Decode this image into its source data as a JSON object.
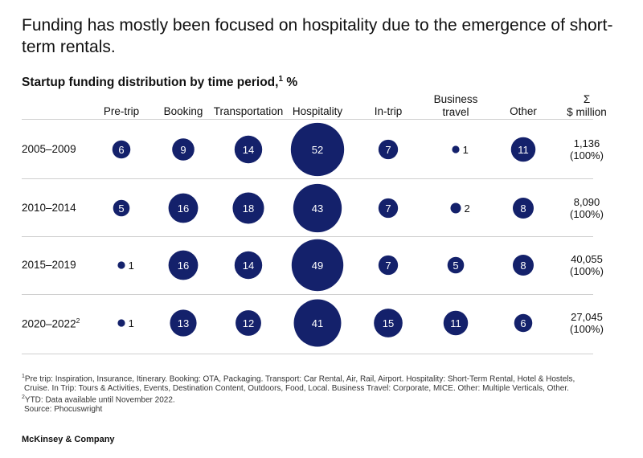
{
  "headline": "Funding has mostly been focused on hospitality due to the emergence of short-term rentals.",
  "chart_data": {
    "type": "bubble-table",
    "title": "Startup funding distribution by time period,",
    "title_footnote": "1",
    "unit": "%",
    "color": "#14216b",
    "columns": [
      {
        "label": "Pre-trip",
        "sub": ""
      },
      {
        "label": "Booking",
        "sub": ""
      },
      {
        "label": "Transportation",
        "sub": ""
      },
      {
        "label": "Hospitality",
        "sub": ""
      },
      {
        "label": "In-trip",
        "sub": ""
      },
      {
        "label": "Business",
        "sub": "travel"
      },
      {
        "label": "Other",
        "sub": ""
      }
    ],
    "total_header": {
      "symbol": "Σ",
      "label": "$ million"
    },
    "rows": [
      {
        "label": "2005–2009",
        "footnote": "",
        "values": [
          6,
          9,
          14,
          52,
          7,
          1,
          11
        ],
        "total": "1,136",
        "total_pct": "(100%)"
      },
      {
        "label": "2010–2014",
        "footnote": "",
        "values": [
          5,
          16,
          18,
          43,
          7,
          2,
          8
        ],
        "total": "8,090",
        "total_pct": "(100%)"
      },
      {
        "label": "2015–2019",
        "footnote": "",
        "values": [
          1,
          16,
          14,
          49,
          7,
          5,
          8
        ],
        "total": "40,055",
        "total_pct": "(100%)"
      },
      {
        "label": "2020–2022",
        "footnote": "2",
        "values": [
          1,
          13,
          12,
          41,
          15,
          11,
          6
        ],
        "total": "27,045",
        "total_pct": "(100%)"
      }
    ]
  },
  "footnotes": {
    "note1_marker": "1",
    "note1_line1": "Pre trip: Inspiration, Insurance, Itinerary. Booking: OTA, Packaging. Transport: Car Rental, Air, Rail, Airport. Hospitality: Short-Term Rental, Hotel & Hostels,",
    "note1_line2": "Cruise. In Trip: Tours & Activities, Events, Destination Content, Outdoors, Food, Local. Business Travel: Corporate, MICE. Other: Multiple Verticals, Other.",
    "note2_marker": "2",
    "note2_text": "YTD: Data available until November 2022.",
    "source": "Source: Phocuswright"
  },
  "brand": "McKinsey & Company"
}
